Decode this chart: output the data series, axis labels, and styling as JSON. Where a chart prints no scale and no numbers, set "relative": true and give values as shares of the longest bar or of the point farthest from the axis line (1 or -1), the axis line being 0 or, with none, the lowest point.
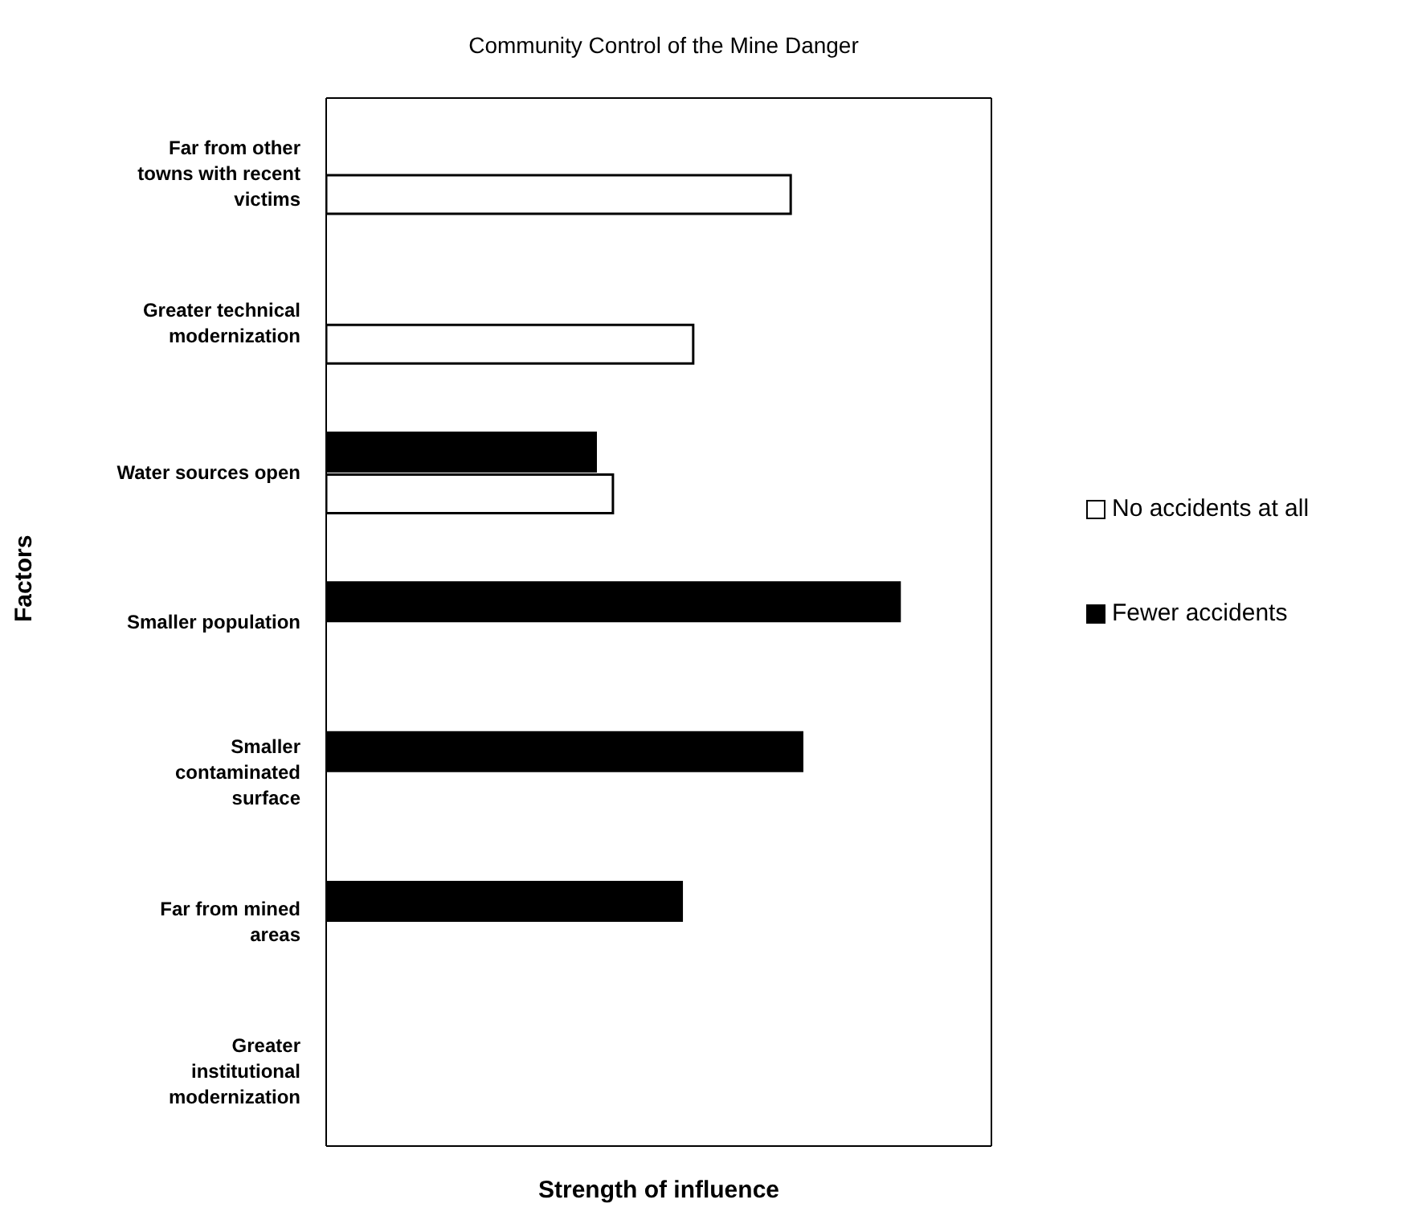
{
  "chart_data": {
    "type": "bar",
    "orientation": "horizontal",
    "relative": true,
    "title": "Community Control of the Mine Danger",
    "xlabel": "Strength of influence",
    "ylabel": "Factors",
    "categories": [
      "Far from other towns with recent victims",
      "Greater technical modernization",
      "Water sources open",
      "Smaller population",
      "Smaller contaminated surface",
      "Far from mined areas",
      "Greater institutional modernization"
    ],
    "series": [
      {
        "name": "No accidents at all",
        "color": "#ffffff",
        "values": [
          0.81,
          0.64,
          0.5,
          null,
          null,
          null,
          null
        ]
      },
      {
        "name": "Fewer accidents",
        "color": "#000000",
        "values": [
          null,
          null,
          0.47,
          1,
          0.83,
          0.62,
          null
        ]
      }
    ],
    "legend": "right",
    "grid": false
  }
}
